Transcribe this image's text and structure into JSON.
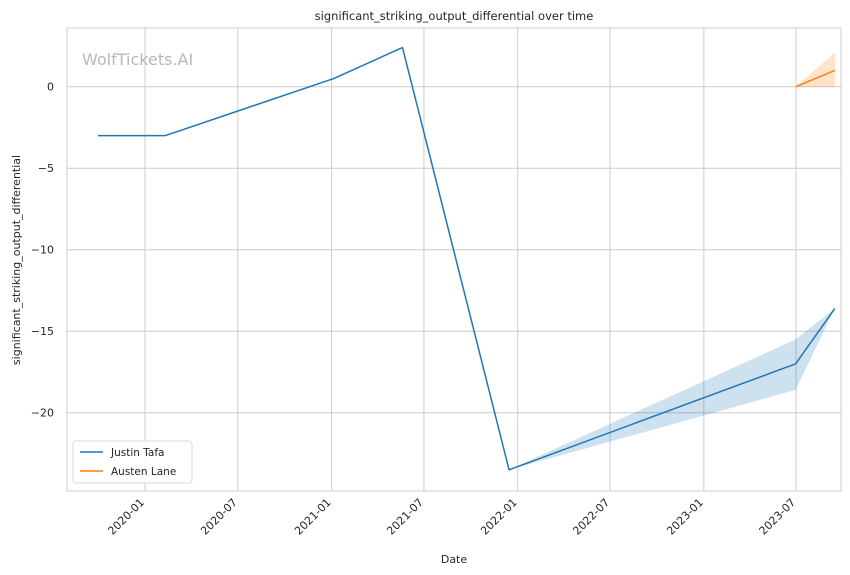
{
  "chart_data": {
    "type": "line",
    "title": "significant_striking_output_differential over time",
    "xlabel": "Date",
    "ylabel": "significant_striking_output_differential",
    "watermark": "WolfTickets.AI",
    "x_ticks": [
      "2020-01",
      "2020-07",
      "2021-01",
      "2021-07",
      "2022-01",
      "2022-07",
      "2023-01",
      "2023-07"
    ],
    "y_ticks": [
      0,
      -5,
      -10,
      -15,
      -20
    ],
    "x_range": [
      "2019-08-01",
      "2023-09-27"
    ],
    "ylim": [
      -24.8,
      3.6
    ],
    "grid": true,
    "legend_position": "lower-left",
    "series": [
      {
        "name": "Justin Tafa",
        "color": "#1f77b4",
        "x": [
          "2019-10-01",
          "2020-02-10",
          "2021-01-05",
          "2021-05-20",
          "2021-12-15",
          "2023-06-30",
          "2023-09-15"
        ],
        "y": [
          -3.0,
          -3.0,
          0.5,
          2.4,
          -23.5,
          -17.0,
          -13.6
        ],
        "ci_lower": [
          -3.0,
          -3.0,
          0.5,
          2.4,
          -23.5,
          -18.6,
          -13.6
        ],
        "ci_upper": [
          -3.0,
          -3.0,
          0.5,
          2.4,
          -23.5,
          -15.5,
          -13.6
        ]
      },
      {
        "name": "Austen Lane",
        "color": "#ff7f0e",
        "x": [
          "2023-06-30",
          "2023-09-15"
        ],
        "y": [
          0.0,
          1.0
        ],
        "ci_lower": [
          0.0,
          0.0
        ],
        "ci_upper": [
          0.0,
          2.1
        ]
      }
    ]
  }
}
